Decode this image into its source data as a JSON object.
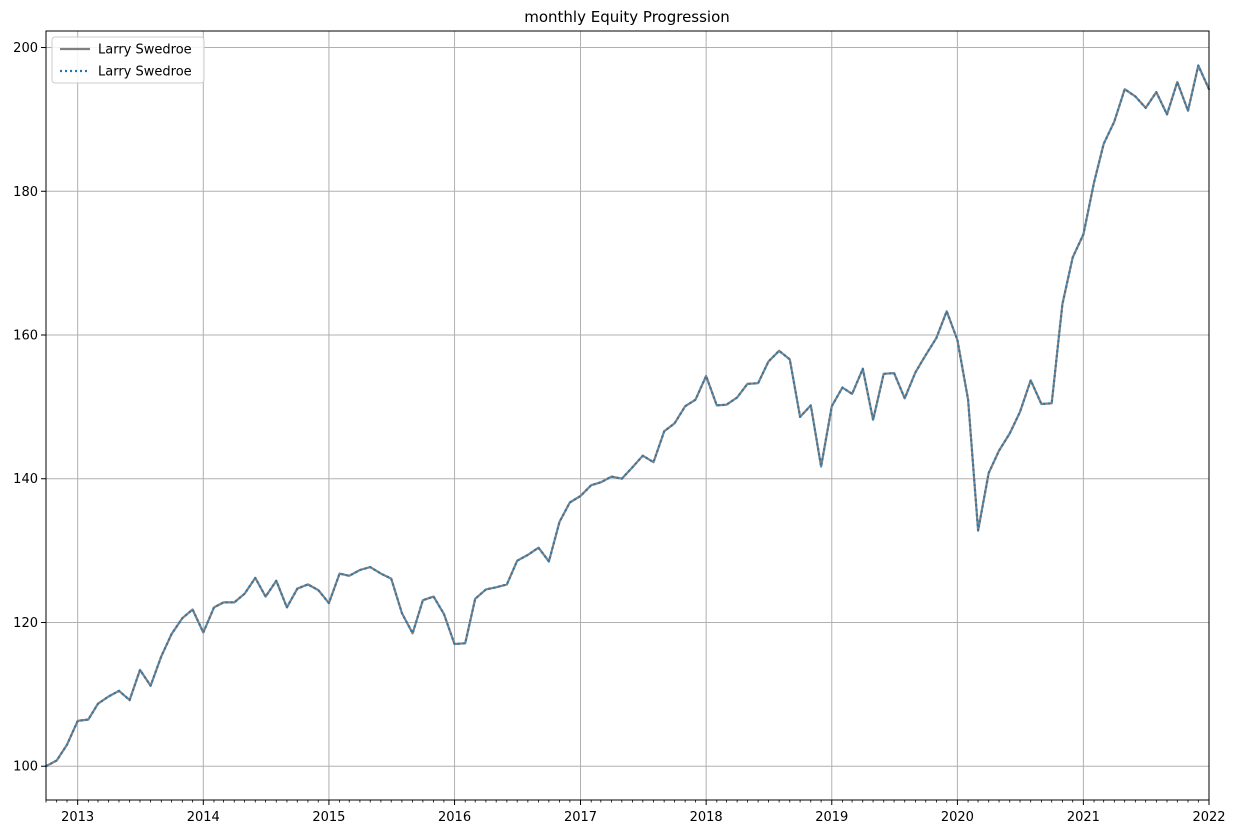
{
  "chart_data": {
    "type": "line",
    "title": "monthly Equity Progression",
    "xlabel": "",
    "ylabel": "",
    "x_start": "2012-10",
    "x_end": "2022-01",
    "xlim": [
      "2012-10",
      "2022-01"
    ],
    "ylim": [
      95.3,
      202.3
    ],
    "grid": true,
    "legend_position": "top-left",
    "x_ticks": [
      "2013",
      "2014",
      "2015",
      "2016",
      "2017",
      "2018",
      "2019",
      "2020",
      "2021",
      "2022"
    ],
    "y_ticks": [
      "100",
      "120",
      "140",
      "160",
      "180",
      "200"
    ],
    "series": [
      {
        "name": "Larry Swedroe",
        "style": "solid",
        "color": "#808080",
        "values": [
          [
            "2012-10",
            100.0
          ],
          [
            "2012-11",
            100.8
          ],
          [
            "2012-12",
            103.0
          ],
          [
            "2013-01",
            106.3
          ],
          [
            "2013-02",
            106.5
          ],
          [
            "2013-03",
            108.7
          ],
          [
            "2013-04",
            109.7
          ],
          [
            "2013-05",
            110.5
          ],
          [
            "2013-06",
            109.2
          ],
          [
            "2013-07",
            113.4
          ],
          [
            "2013-08",
            111.2
          ],
          [
            "2013-09",
            115.3
          ],
          [
            "2013-10",
            118.4
          ],
          [
            "2013-11",
            120.6
          ],
          [
            "2013-12",
            121.8
          ],
          [
            "2014-01",
            118.6
          ],
          [
            "2014-02",
            122.1
          ],
          [
            "2014-03",
            122.8
          ],
          [
            "2014-04",
            122.8
          ],
          [
            "2014-05",
            124.0
          ],
          [
            "2014-06",
            126.2
          ],
          [
            "2014-07",
            123.6
          ],
          [
            "2014-08",
            125.8
          ],
          [
            "2014-09",
            122.1
          ],
          [
            "2014-10",
            124.7
          ],
          [
            "2014-11",
            125.3
          ],
          [
            "2014-12",
            124.5
          ],
          [
            "2015-01",
            122.7
          ],
          [
            "2015-02",
            126.8
          ],
          [
            "2015-03",
            126.5
          ],
          [
            "2015-04",
            127.3
          ],
          [
            "2015-05",
            127.7
          ],
          [
            "2015-06",
            126.8
          ],
          [
            "2015-07",
            126.1
          ],
          [
            "2015-08",
            121.3
          ],
          [
            "2015-09",
            118.5
          ],
          [
            "2015-10",
            123.1
          ],
          [
            "2015-11",
            123.6
          ],
          [
            "2015-12",
            121.2
          ],
          [
            "2016-01",
            117.0
          ],
          [
            "2016-02",
            117.1
          ],
          [
            "2016-03",
            123.3
          ],
          [
            "2016-04",
            124.6
          ],
          [
            "2016-05",
            124.9
          ],
          [
            "2016-06",
            125.3
          ],
          [
            "2016-07",
            128.6
          ],
          [
            "2016-08",
            129.4
          ],
          [
            "2016-09",
            130.4
          ],
          [
            "2016-10",
            128.5
          ],
          [
            "2016-11",
            134.0
          ],
          [
            "2016-12",
            136.7
          ],
          [
            "2017-01",
            137.6
          ],
          [
            "2017-02",
            139.1
          ],
          [
            "2017-03",
            139.5
          ],
          [
            "2017-04",
            140.3
          ],
          [
            "2017-05",
            140.0
          ],
          [
            "2017-06",
            141.6
          ],
          [
            "2017-07",
            143.2
          ],
          [
            "2017-08",
            142.3
          ],
          [
            "2017-09",
            146.6
          ],
          [
            "2017-10",
            147.7
          ],
          [
            "2017-11",
            150.1
          ],
          [
            "2017-12",
            151.0
          ],
          [
            "2018-01",
            154.3
          ],
          [
            "2018-02",
            150.2
          ],
          [
            "2018-03",
            150.3
          ],
          [
            "2018-04",
            151.3
          ],
          [
            "2018-05",
            153.2
          ],
          [
            "2018-06",
            153.3
          ],
          [
            "2018-07",
            156.3
          ],
          [
            "2018-08",
            157.8
          ],
          [
            "2018-09",
            156.6
          ],
          [
            "2018-10",
            148.6
          ],
          [
            "2018-11",
            150.2
          ],
          [
            "2018-12",
            141.7
          ],
          [
            "2019-01",
            150.1
          ],
          [
            "2019-02",
            152.7
          ],
          [
            "2019-03",
            151.8
          ],
          [
            "2019-04",
            155.3
          ],
          [
            "2019-05",
            148.2
          ],
          [
            "2019-06",
            154.6
          ],
          [
            "2019-07",
            154.7
          ],
          [
            "2019-08",
            151.2
          ],
          [
            "2019-09",
            154.8
          ],
          [
            "2019-10",
            157.2
          ],
          [
            "2019-11",
            159.6
          ],
          [
            "2019-12",
            163.3
          ],
          [
            "2020-01",
            159.3
          ],
          [
            "2020-02",
            151.0
          ],
          [
            "2020-03",
            132.8
          ],
          [
            "2020-04",
            140.8
          ],
          [
            "2020-05",
            143.9
          ],
          [
            "2020-06",
            146.3
          ],
          [
            "2020-07",
            149.3
          ],
          [
            "2020-08",
            153.7
          ],
          [
            "2020-09",
            150.4
          ],
          [
            "2020-10",
            150.5
          ],
          [
            "2020-11",
            164.3
          ],
          [
            "2020-12",
            170.8
          ],
          [
            "2021-01",
            174.0
          ],
          [
            "2021-02",
            181.2
          ],
          [
            "2021-03",
            186.6
          ],
          [
            "2021-04",
            189.7
          ],
          [
            "2021-05",
            194.2
          ],
          [
            "2021-06",
            193.2
          ],
          [
            "2021-07",
            191.6
          ],
          [
            "2021-08",
            193.8
          ],
          [
            "2021-09",
            190.7
          ],
          [
            "2021-10",
            195.2
          ],
          [
            "2021-11",
            191.2
          ],
          [
            "2021-12",
            197.5
          ],
          [
            "2022-01",
            194.2
          ]
        ]
      },
      {
        "name": "Larry Swedroe",
        "style": "dotted",
        "color": "#1f77b4",
        "same_as_series": 0
      }
    ]
  },
  "legend": {
    "entries": [
      "Larry Swedroe",
      "Larry Swedroe"
    ]
  }
}
